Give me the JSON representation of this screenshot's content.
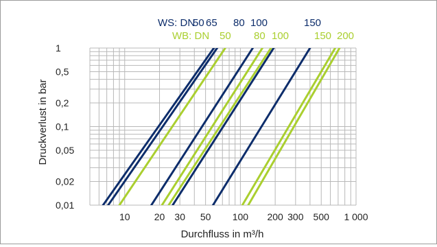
{
  "chart_data": {
    "type": "line",
    "xlabel": "Durchfluss in m³/h",
    "ylabel": "Druckverlust in bar",
    "x_scale": "log",
    "y_scale": "log",
    "xlim": [
      5,
      1000
    ],
    "ylim": [
      0.01,
      1
    ],
    "grid": true,
    "x_ticks": [
      {
        "value": 10,
        "label": "10"
      },
      {
        "value": 20,
        "label": "20"
      },
      {
        "value": 30,
        "label": "30"
      },
      {
        "value": 50,
        "label": "50"
      },
      {
        "value": 100,
        "label": "100"
      },
      {
        "value": 200,
        "label": "200"
      },
      {
        "value": 300,
        "label": "300"
      },
      {
        "value": 500,
        "label": "500"
      },
      {
        "value": 1000,
        "label": "1 000"
      }
    ],
    "y_ticks": [
      {
        "value": 0.01,
        "label": "0,01"
      },
      {
        "value": 0.02,
        "label": "0,02"
      },
      {
        "value": 0.05,
        "label": "0,05"
      },
      {
        "value": 0.1,
        "label": "0,1"
      },
      {
        "value": 0.2,
        "label": "0,2"
      },
      {
        "value": 0.5,
        "label": "0,5"
      },
      {
        "value": 1,
        "label": "1"
      }
    ],
    "legend": [
      {
        "prefix": "WS: DN",
        "color": "#0d2d6b",
        "sizes": [
          "50",
          "65",
          "80",
          "100",
          "150"
        ]
      },
      {
        "prefix": "WB: DN",
        "color": "#aacf2f",
        "sizes": [
          "50",
          "80",
          "100",
          "150",
          "200"
        ]
      }
    ],
    "series": [
      {
        "group": "WS",
        "color": "#0d2d6b",
        "points": [
          {
            "x": 6.5,
            "y": 0.01
          },
          {
            "x": 59,
            "y": 1
          }
        ]
      },
      {
        "group": "WS",
        "color": "#0d2d6b",
        "points": [
          {
            "x": 7.2,
            "y": 0.01
          },
          {
            "x": 63,
            "y": 1
          }
        ]
      },
      {
        "group": "WS",
        "color": "#0d2d6b",
        "points": [
          {
            "x": 17,
            "y": 0.01
          },
          {
            "x": 128,
            "y": 1
          }
        ]
      },
      {
        "group": "WS",
        "color": "#0d2d6b",
        "points": [
          {
            "x": 26,
            "y": 0.01
          },
          {
            "x": 194,
            "y": 1
          }
        ]
      },
      {
        "group": "WS",
        "color": "#0d2d6b",
        "points": [
          {
            "x": 58,
            "y": 0.01
          },
          {
            "x": 400,
            "y": 1
          }
        ]
      },
      {
        "group": "WB",
        "color": "#aacf2f",
        "points": [
          {
            "x": 9,
            "y": 0.01
          },
          {
            "x": 74,
            "y": 1
          }
        ]
      },
      {
        "group": "WB",
        "color": "#aacf2f",
        "points": [
          {
            "x": 21,
            "y": 0.01
          },
          {
            "x": 155,
            "y": 1
          }
        ]
      },
      {
        "group": "WB",
        "color": "#aacf2f",
        "points": [
          {
            "x": 24,
            "y": 0.01
          },
          {
            "x": 184,
            "y": 1
          }
        ]
      },
      {
        "group": "WB",
        "color": "#aacf2f",
        "points": [
          {
            "x": 104,
            "y": 0.01
          },
          {
            "x": 660,
            "y": 1
          }
        ]
      },
      {
        "group": "WB",
        "color": "#aacf2f",
        "points": [
          {
            "x": 117,
            "y": 0.01
          },
          {
            "x": 720,
            "y": 1
          }
        ]
      }
    ]
  }
}
